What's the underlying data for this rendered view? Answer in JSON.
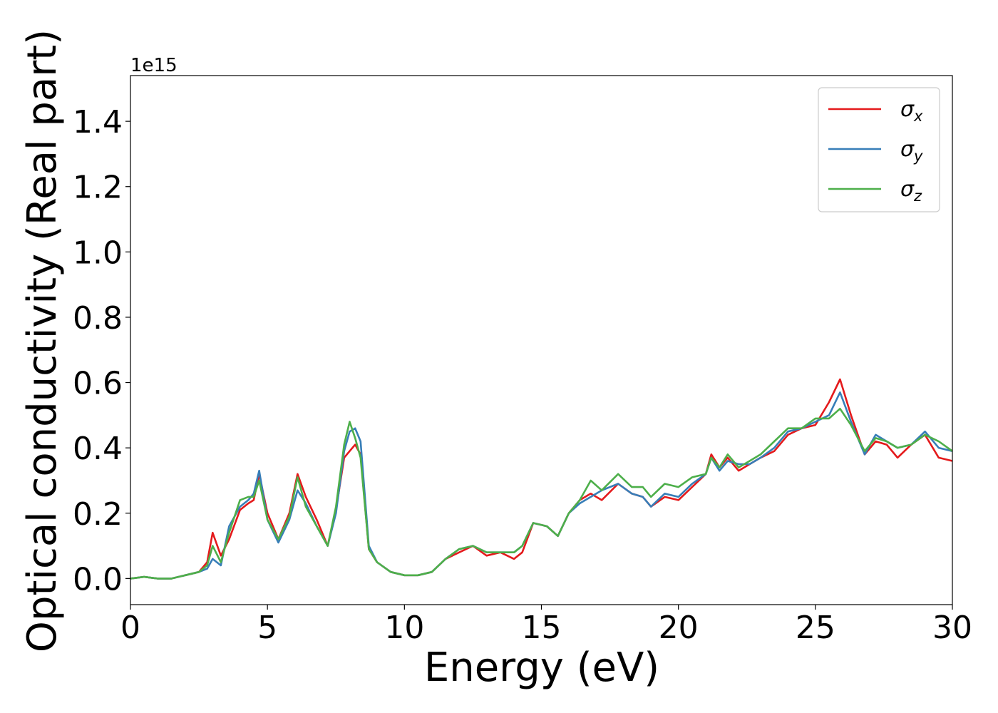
{
  "chart_data": {
    "type": "line",
    "xlabel": "Energy (eV)",
    "ylabel": "Optical conductivity (Real part)",
    "y_offset_label": "1e15",
    "xlim": [
      0,
      30
    ],
    "ylim": [
      -0.08,
      1.54
    ],
    "x_ticks": [
      0,
      5,
      10,
      15,
      20,
      25,
      30
    ],
    "x_tick_labels": [
      "0",
      "5",
      "10",
      "15",
      "20",
      "25",
      "30"
    ],
    "y_ticks": [
      0.0,
      0.2,
      0.4,
      0.6,
      0.8,
      1.0,
      1.2,
      1.4
    ],
    "y_tick_labels": [
      "0.0",
      "0.2",
      "0.4",
      "0.6",
      "0.8",
      "1.0",
      "1.2",
      "1.4"
    ],
    "grid": false,
    "legend_position": "top-right",
    "x": [
      0,
      0.5,
      1,
      1.5,
      2,
      2.5,
      2.8,
      3.0,
      3.3,
      3.6,
      4.0,
      4.3,
      4.5,
      4.7,
      5.0,
      5.4,
      5.8,
      6.1,
      6.4,
      6.8,
      7.2,
      7.5,
      7.8,
      8.0,
      8.2,
      8.4,
      8.7,
      9.0,
      9.5,
      10,
      10.5,
      11,
      11.5,
      12,
      12.5,
      13,
      13.5,
      14,
      14.3,
      14.7,
      15.2,
      15.6,
      16,
      16.4,
      16.8,
      17.2,
      17.8,
      18.3,
      18.7,
      19.0,
      19.5,
      20.0,
      20.5,
      21.0,
      21.2,
      21.5,
      21.8,
      22.2,
      22.6,
      23.0,
      23.5,
      24.0,
      24.5,
      25.0,
      25.5,
      25.9,
      26.3,
      26.8,
      27.2,
      27.6,
      28.0,
      28.5,
      29.0,
      29.5,
      30.0
    ],
    "series": [
      {
        "name": "σx",
        "color": "#e41a1c",
        "values": [
          0.0,
          0.005,
          0.0,
          0.0,
          0.01,
          0.02,
          0.05,
          0.14,
          0.07,
          0.12,
          0.21,
          0.23,
          0.24,
          0.32,
          0.2,
          0.12,
          0.2,
          0.32,
          0.25,
          0.18,
          0.1,
          0.21,
          0.37,
          0.39,
          0.41,
          0.38,
          0.09,
          0.05,
          0.02,
          0.01,
          0.01,
          0.02,
          0.06,
          0.08,
          0.1,
          0.07,
          0.08,
          0.06,
          0.08,
          0.17,
          0.16,
          0.13,
          0.2,
          0.24,
          0.26,
          0.24,
          0.29,
          0.26,
          0.25,
          0.22,
          0.25,
          0.24,
          0.28,
          0.32,
          0.38,
          0.34,
          0.37,
          0.33,
          0.35,
          0.37,
          0.39,
          0.44,
          0.46,
          0.47,
          0.54,
          0.61,
          0.5,
          0.38,
          0.42,
          0.41,
          0.37,
          0.41,
          0.44,
          0.37,
          0.36
        ]
      },
      {
        "name": "σy",
        "color": "#377eb8",
        "values": [
          0.0,
          0.005,
          0.0,
          0.0,
          0.01,
          0.02,
          0.03,
          0.06,
          0.04,
          0.16,
          0.22,
          0.24,
          0.26,
          0.33,
          0.18,
          0.11,
          0.18,
          0.27,
          0.23,
          0.16,
          0.1,
          0.2,
          0.39,
          0.45,
          0.46,
          0.42,
          0.1,
          0.05,
          0.02,
          0.01,
          0.01,
          0.02,
          0.06,
          0.09,
          0.1,
          0.08,
          0.08,
          0.08,
          0.1,
          0.17,
          0.16,
          0.13,
          0.2,
          0.23,
          0.25,
          0.27,
          0.29,
          0.26,
          0.25,
          0.22,
          0.26,
          0.25,
          0.29,
          0.32,
          0.37,
          0.33,
          0.36,
          0.35,
          0.35,
          0.37,
          0.4,
          0.45,
          0.46,
          0.48,
          0.5,
          0.57,
          0.48,
          0.38,
          0.44,
          0.42,
          0.4,
          0.41,
          0.45,
          0.4,
          0.39
        ]
      },
      {
        "name": "σz",
        "color": "#4daf4a",
        "values": [
          0.0,
          0.005,
          0.0,
          0.0,
          0.01,
          0.02,
          0.04,
          0.1,
          0.05,
          0.14,
          0.24,
          0.25,
          0.25,
          0.3,
          0.18,
          0.12,
          0.19,
          0.31,
          0.22,
          0.16,
          0.1,
          0.22,
          0.41,
          0.48,
          0.43,
          0.37,
          0.09,
          0.05,
          0.02,
          0.01,
          0.01,
          0.02,
          0.06,
          0.09,
          0.1,
          0.08,
          0.08,
          0.08,
          0.1,
          0.17,
          0.16,
          0.13,
          0.2,
          0.24,
          0.3,
          0.27,
          0.32,
          0.28,
          0.28,
          0.25,
          0.29,
          0.28,
          0.31,
          0.32,
          0.37,
          0.34,
          0.38,
          0.34,
          0.36,
          0.38,
          0.42,
          0.46,
          0.46,
          0.49,
          0.49,
          0.52,
          0.47,
          0.39,
          0.43,
          0.42,
          0.4,
          0.41,
          0.44,
          0.42,
          0.39
        ]
      }
    ],
    "legend": [
      {
        "symbol": "σ",
        "sub": "x"
      },
      {
        "symbol": "σ",
        "sub": "y"
      },
      {
        "symbol": "σ",
        "sub": "z"
      }
    ]
  }
}
